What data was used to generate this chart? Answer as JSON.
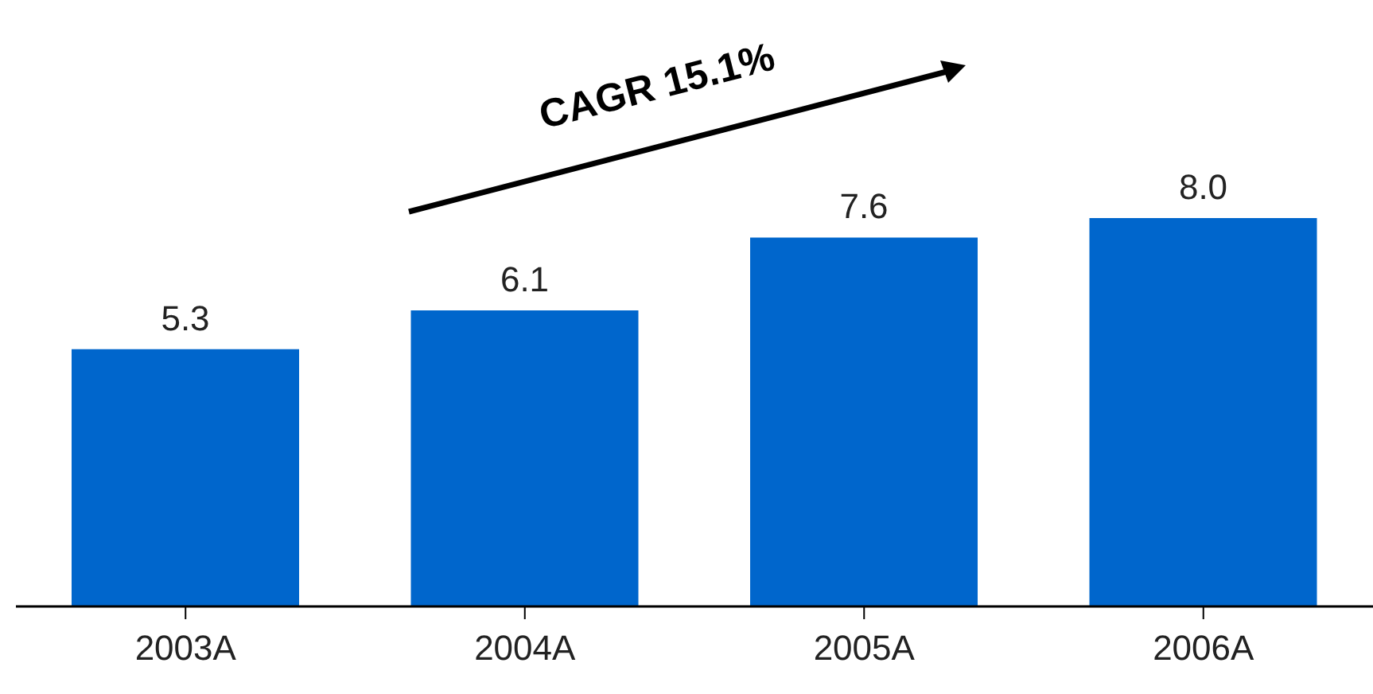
{
  "chart_data": {
    "type": "bar",
    "categories": [
      "2003A",
      "2004A",
      "2005A",
      "2006A"
    ],
    "values": [
      5.3,
      6.1,
      7.6,
      8.0
    ],
    "value_labels": [
      "5.3",
      "6.1",
      "7.6",
      "8.0"
    ],
    "color": "#0066cc",
    "annotations": [
      "CAGR 15.1%"
    ]
  }
}
